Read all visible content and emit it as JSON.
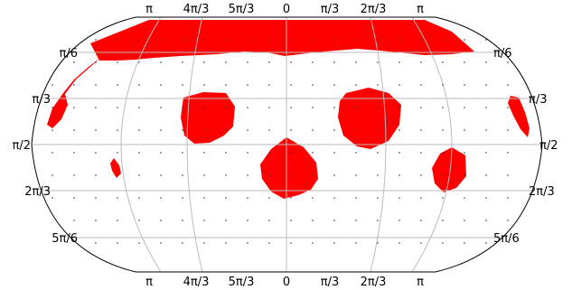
{
  "map": {
    "projection": "Robinson",
    "top_labels": [
      "π",
      "4π/3",
      "5π/3",
      "0",
      "π/3",
      "2π/3",
      "π"
    ],
    "bottom_labels": [
      "π",
      "4π/3",
      "5π/3",
      "0",
      "π/3",
      "2π/3",
      "π"
    ],
    "left_labels": [
      "π/6",
      "π/3",
      "π/2",
      "2π/3",
      "5π/6"
    ],
    "right_labels": [
      "π/6",
      "π/3",
      "π/2",
      "2π/3",
      "5π/6"
    ],
    "colors": {
      "region": "#ff0000",
      "graticule": "#bbbbbb",
      "outline": "#000000",
      "dot": "#333333"
    },
    "regions": [
      "top-band",
      "left-sliver",
      "patch-upper-left",
      "patch-upper-right",
      "right-sliver",
      "patch-center",
      "patch-lower-right",
      "small-left-speck"
    ]
  }
}
